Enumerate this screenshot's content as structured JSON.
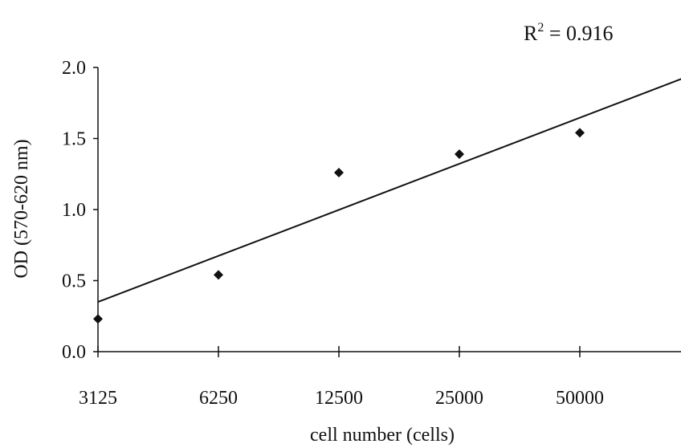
{
  "chart_data": {
    "type": "scatter",
    "x_scale": "log2",
    "xlabel": "cell number (cells)",
    "ylabel": "OD (570-620 nm)",
    "x_ticks": [
      3125,
      6250,
      12500,
      25000,
      50000
    ],
    "y_ticks": [
      "0.0",
      "0.5",
      "1.0",
      "1.5",
      "2.0"
    ],
    "ylim": [
      0,
      2
    ],
    "grid": false,
    "points": [
      {
        "x": 3125,
        "y": 0.23
      },
      {
        "x": 6250,
        "y": 0.54
      },
      {
        "x": 12500,
        "y": 1.26
      },
      {
        "x": 25000,
        "y": 1.39
      },
      {
        "x": 50000,
        "y": 1.54
      }
    ],
    "trendline": {
      "type": "linear",
      "start": {
        "x": 3125,
        "y": 0.35
      },
      "end": {
        "x": 100000,
        "y": 1.97
      }
    },
    "annotation": {
      "prefix": "R",
      "sup": "2",
      "value": " = 0.916"
    },
    "colors": {
      "points": "#111111",
      "line": "#111111",
      "axes": "#111111"
    }
  }
}
